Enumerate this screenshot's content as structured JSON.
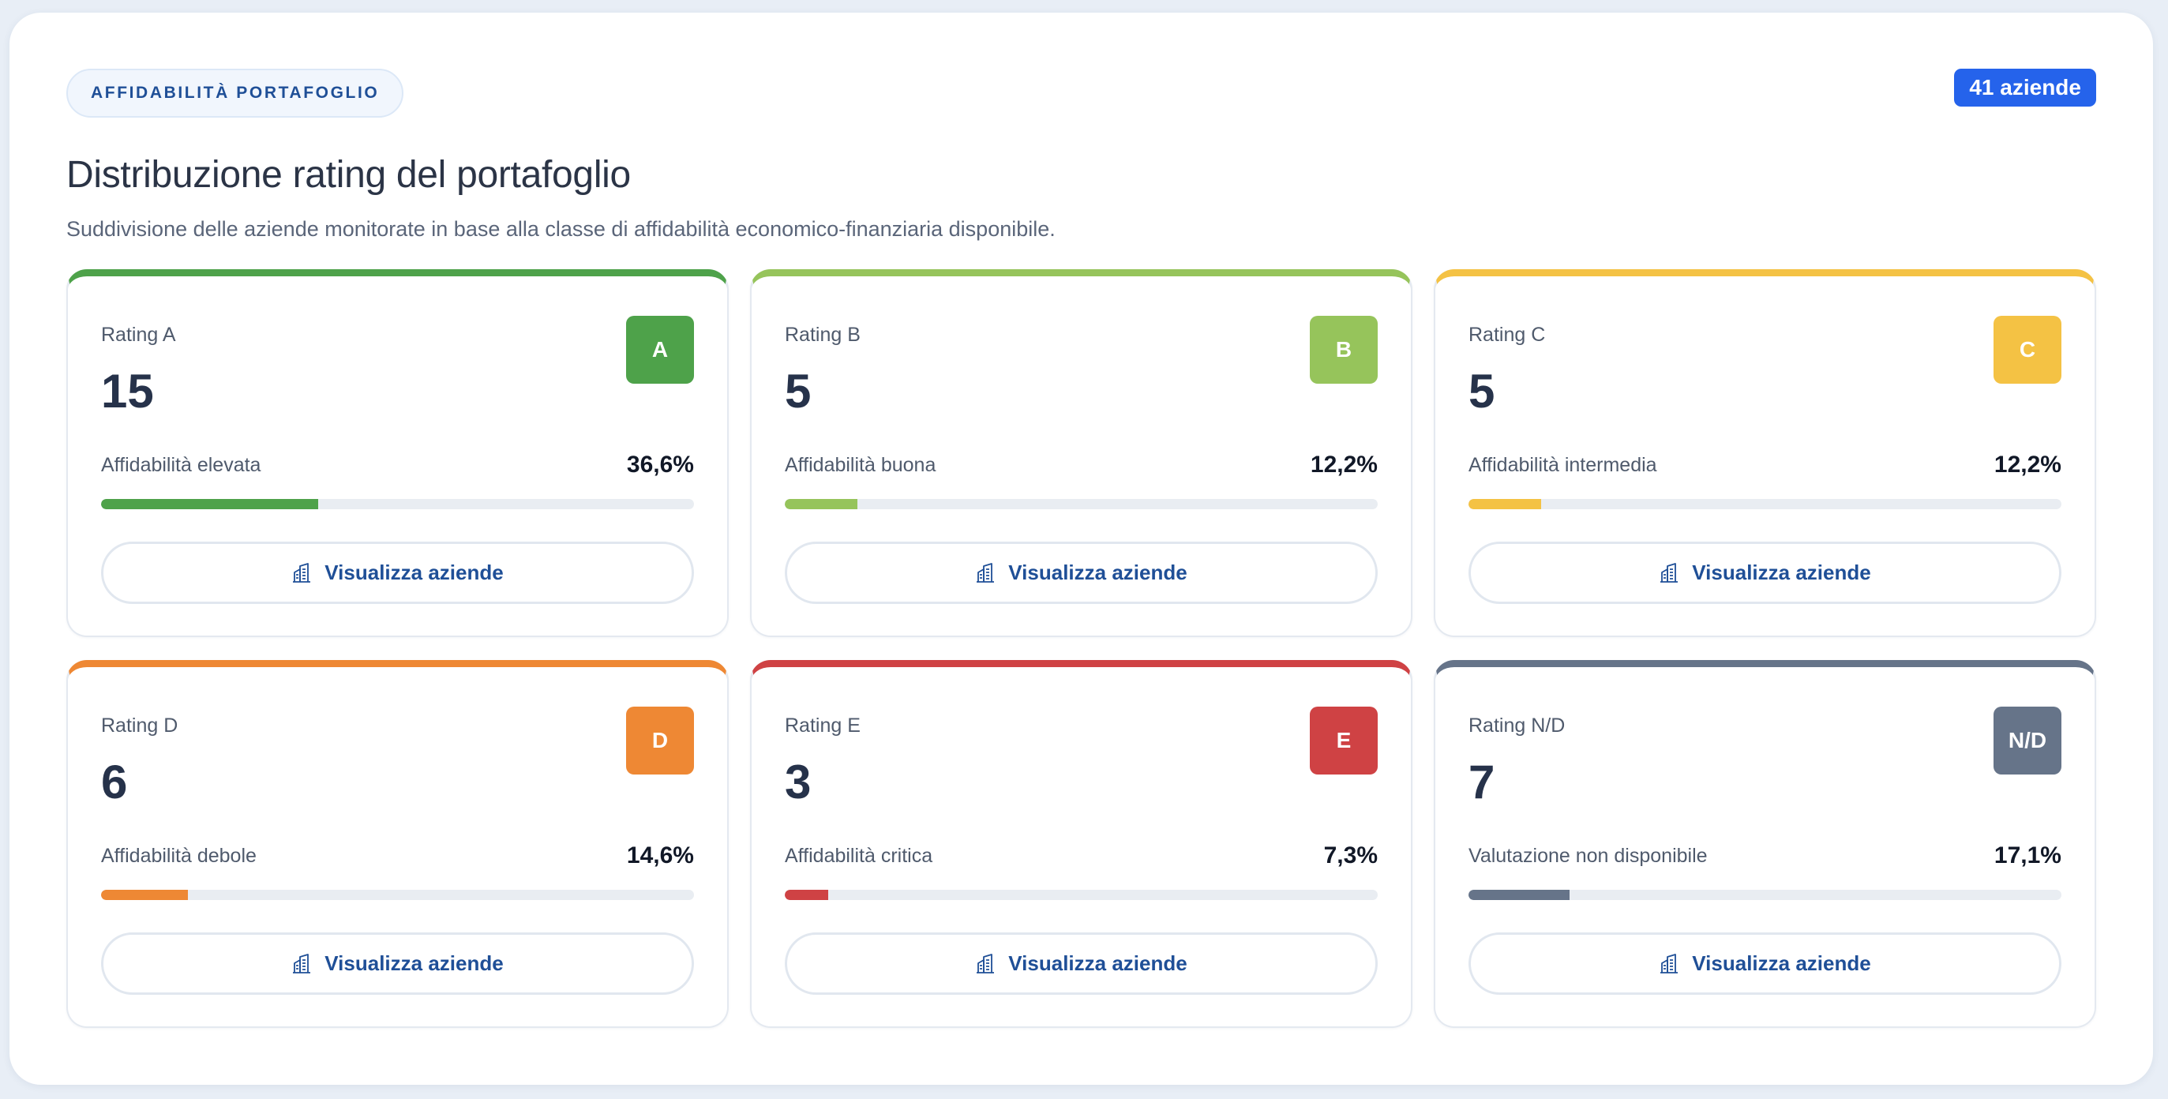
{
  "header": {
    "eyebrow": "AFFIDABILITÀ PORTAFOGLIO",
    "count_badge": "41 aziende",
    "title": "Distribuzione rating del portafoglio",
    "subtitle": "Suddivisione delle aziende monitorate in base alla classe di affidabilità economico-finanziaria disponibile."
  },
  "cards": [
    {
      "label": "Rating A",
      "badge": "A",
      "count": "15",
      "description": "Affidabilità elevata",
      "percent_text": "36,6%",
      "percent": 36.6,
      "color": "#4ea24a",
      "button_label": "Visualizza aziende",
      "button_icon": "building-icon"
    },
    {
      "label": "Rating B",
      "badge": "B",
      "count": "5",
      "description": "Affidabilità buona",
      "percent_text": "12,2%",
      "percent": 12.2,
      "color": "#96c45b",
      "button_label": "Visualizza aziende",
      "button_icon": "building-icon"
    },
    {
      "label": "Rating C",
      "badge": "C",
      "count": "5",
      "description": "Affidabilità intermedia",
      "percent_text": "12,2%",
      "percent": 12.2,
      "color": "#f4c244",
      "button_label": "Visualizza aziende",
      "button_icon": "building-icon"
    },
    {
      "label": "Rating D",
      "badge": "D",
      "count": "6",
      "description": "Affidabilità debole",
      "percent_text": "14,6%",
      "percent": 14.6,
      "color": "#ee8834",
      "button_label": "Visualizza aziende",
      "button_icon": "building-icon"
    },
    {
      "label": "Rating E",
      "badge": "E",
      "count": "3",
      "description": "Affidabilità critica",
      "percent_text": "7,3%",
      "percent": 7.3,
      "color": "#cf4244",
      "button_label": "Visualizza aziende",
      "button_icon": "building-icon"
    },
    {
      "label": "Rating N/D",
      "badge": "N/D",
      "count": "7",
      "description": "Valutazione non disponibile",
      "percent_text": "17,1%",
      "percent": 17.1,
      "color": "#667489",
      "button_label": "Visualizza aziende",
      "button_icon": "building-icon"
    }
  ]
}
